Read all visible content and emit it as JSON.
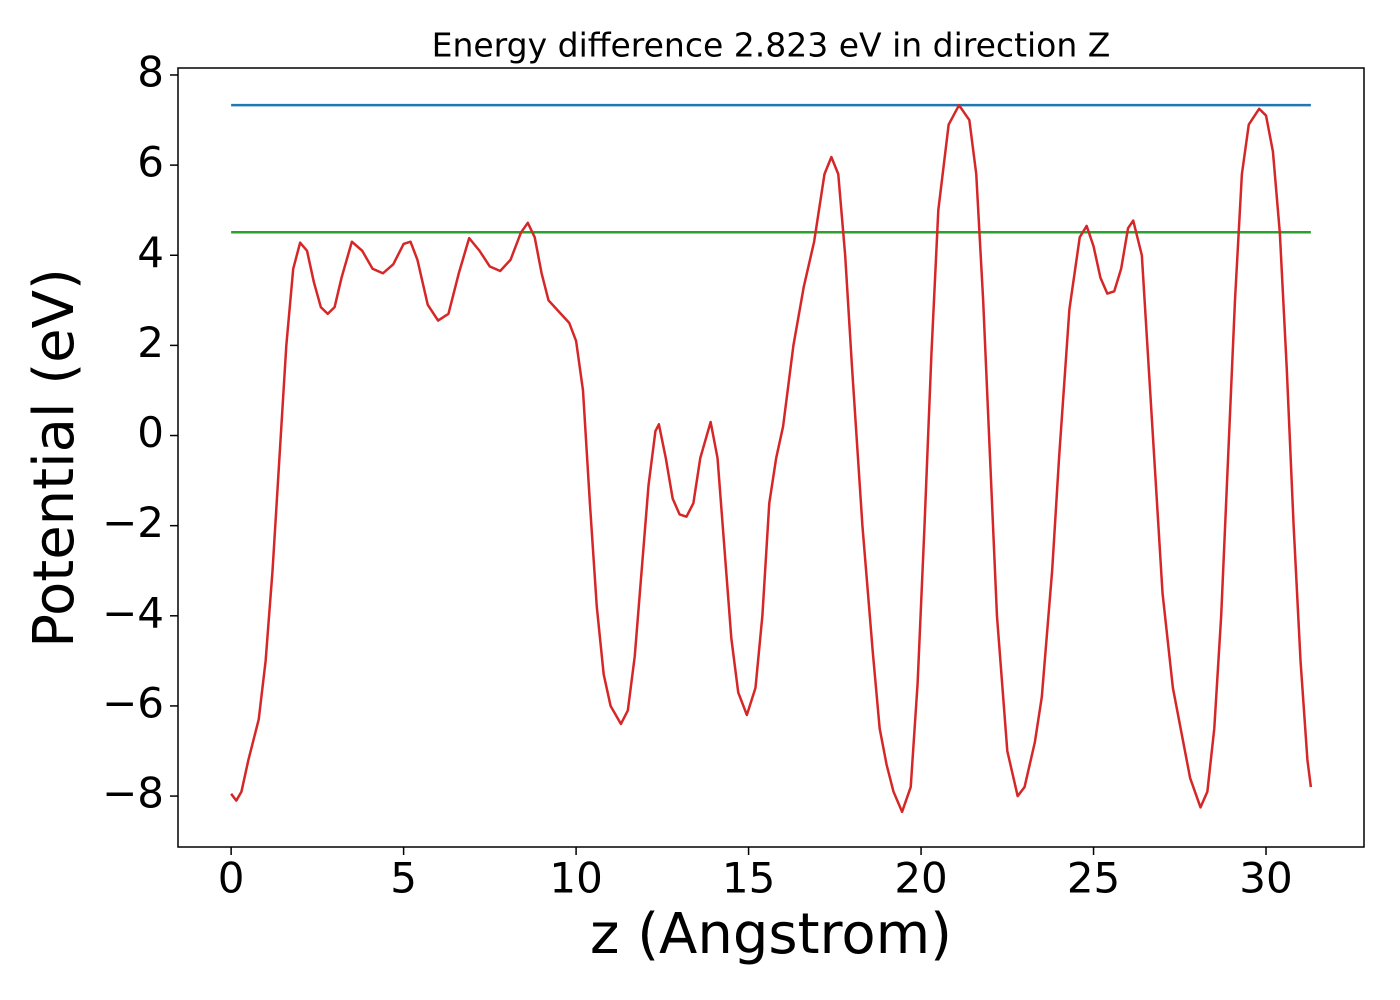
{
  "chart_data": {
    "type": "line",
    "title": "Energy difference 2.823 eV in direction Z",
    "xlabel": "z (Angstrom)",
    "ylabel": "Potential (eV)",
    "xlim": [
      -1.54,
      32.84
    ],
    "ylim": [
      -9.13,
      8.155
    ],
    "xticks": [
      0,
      5,
      10,
      15,
      20,
      25,
      30
    ],
    "yticks": [
      {
        "value": -8,
        "label": "−8"
      },
      {
        "value": -6,
        "label": "−6"
      },
      {
        "value": -4,
        "label": "−4"
      },
      {
        "value": -2,
        "label": "−2"
      },
      0,
      2,
      4,
      6,
      8
    ],
    "grid": false,
    "series": [
      {
        "color": "#d62728",
        "x": [
          0,
          0.15,
          0.3,
          0.5,
          0.8,
          1.0,
          1.2,
          1.4,
          1.6,
          1.8,
          2.0,
          2.2,
          2.4,
          2.6,
          2.8,
          3.0,
          3.2,
          3.5,
          3.8,
          4.1,
          4.4,
          4.7,
          5.0,
          5.2,
          5.4,
          5.7,
          6.0,
          6.3,
          6.6,
          6.9,
          7.2,
          7.5,
          7.8,
          8.1,
          8.4,
          8.6,
          8.8,
          9.0,
          9.2,
          9.5,
          9.8,
          10.0,
          10.2,
          10.4,
          10.6,
          10.8,
          11.0,
          11.3,
          11.5,
          11.7,
          11.9,
          12.1,
          12.3,
          12.4,
          12.6,
          12.8,
          13.0,
          13.2,
          13.4,
          13.6,
          13.9,
          14.1,
          14.3,
          14.5,
          14.7,
          14.95,
          15.2,
          15.4,
          15.6,
          15.8,
          16.0,
          16.3,
          16.6,
          16.9,
          17.2,
          17.4,
          17.6,
          17.8,
          18.0,
          18.3,
          18.6,
          18.8,
          19.0,
          19.2,
          19.45,
          19.7,
          19.9,
          20.1,
          20.3,
          20.5,
          20.8,
          21.1,
          21.4,
          21.6,
          21.8,
          22.0,
          22.2,
          22.5,
          22.8,
          23.0,
          23.3,
          23.5,
          23.8,
          24.0,
          24.3,
          24.6,
          24.8,
          25.0,
          25.2,
          25.4,
          25.6,
          25.8,
          26.0,
          26.15,
          26.4,
          26.6,
          26.8,
          27.0,
          27.3,
          27.6,
          27.8,
          28.1,
          28.3,
          28.5,
          28.7,
          28.9,
          29.1,
          29.3,
          29.5,
          29.8,
          30.0,
          30.2,
          30.4,
          30.6,
          30.8,
          31.0,
          31.2,
          31.3
        ],
        "values": [
          -7.95,
          -8.1,
          -7.9,
          -7.2,
          -6.3,
          -5.0,
          -3.0,
          -0.5,
          2.0,
          3.7,
          4.28,
          4.1,
          3.4,
          2.85,
          2.7,
          2.85,
          3.5,
          4.3,
          4.1,
          3.7,
          3.6,
          3.8,
          4.25,
          4.3,
          3.9,
          2.9,
          2.55,
          2.7,
          3.6,
          4.38,
          4.1,
          3.75,
          3.65,
          3.9,
          4.5,
          4.72,
          4.4,
          3.6,
          3.0,
          2.75,
          2.5,
          2.1,
          1.0,
          -1.5,
          -3.8,
          -5.3,
          -6.0,
          -6.4,
          -6.1,
          -4.9,
          -3.0,
          -1.1,
          0.1,
          0.25,
          -0.5,
          -1.4,
          -1.75,
          -1.8,
          -1.5,
          -0.5,
          0.3,
          -0.5,
          -2.5,
          -4.5,
          -5.7,
          -6.2,
          -5.6,
          -4.0,
          -1.5,
          -0.5,
          0.2,
          2.0,
          3.3,
          4.3,
          5.8,
          6.18,
          5.8,
          4.0,
          1.5,
          -2.0,
          -4.8,
          -6.5,
          -7.3,
          -7.9,
          -8.35,
          -7.8,
          -5.5,
          -2.0,
          1.8,
          5.0,
          6.9,
          7.33,
          7.0,
          5.8,
          3.0,
          -0.5,
          -4.0,
          -7.0,
          -8.0,
          -7.8,
          -6.8,
          -5.8,
          -3.0,
          -0.5,
          2.8,
          4.4,
          4.65,
          4.2,
          3.5,
          3.15,
          3.2,
          3.7,
          4.6,
          4.77,
          4.0,
          1.5,
          -1.0,
          -3.5,
          -5.6,
          -6.8,
          -7.6,
          -8.25,
          -7.9,
          -6.5,
          -4.0,
          -0.5,
          3.0,
          5.8,
          6.9,
          7.25,
          7.1,
          6.3,
          4.5,
          1.5,
          -2.0,
          -5.0,
          -7.2,
          -7.8
        ]
      },
      {
        "color": "#1f77b4",
        "x": [
          0,
          31.3
        ],
        "values": [
          7.33,
          7.33
        ]
      },
      {
        "color": "#2ca02c",
        "x": [
          0,
          31.3
        ],
        "values": [
          4.51,
          4.51
        ]
      }
    ]
  }
}
